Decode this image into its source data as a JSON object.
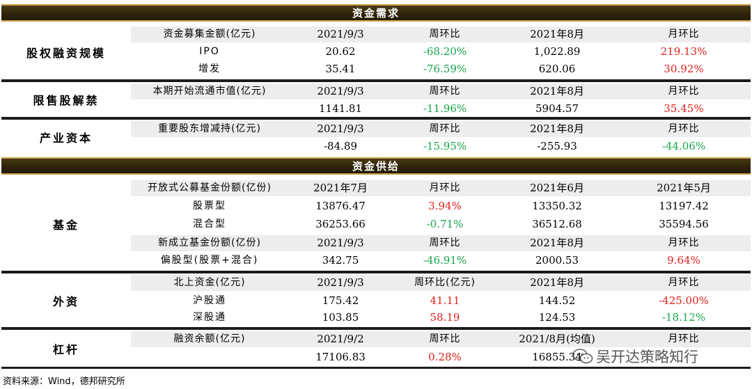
{
  "demand": {
    "title": "资金需求",
    "equity": {
      "label": "股权融资规模",
      "rows": [
        [
          "资金募集金额(亿元)",
          "2021/9/3",
          "周环比",
          "2021年8月",
          "月环比"
        ],
        [
          "IPO",
          "20.62",
          "-68.20%",
          "1,022.89",
          "219.13%"
        ],
        [
          "增发",
          "35.41",
          "-76.59%",
          "620.06",
          "30.92%"
        ]
      ]
    },
    "restricted": {
      "label": "限售股解禁",
      "rows": [
        [
          "本期开始流通市值(亿元)",
          "2021/9/3",
          "周环比",
          "2021年8月",
          "月环比"
        ],
        [
          "",
          "1141.81",
          "-11.96%",
          "5904.57",
          "35.45%"
        ]
      ]
    },
    "industrial": {
      "label": "产业资本",
      "rows": [
        [
          "重要股东增减持(亿元)",
          "2021/9/3",
          "周环比",
          "2021年8月",
          "月环比"
        ],
        [
          "",
          "-84.89",
          "-15.95%",
          "-255.93",
          "-44.06%"
        ]
      ]
    }
  },
  "supply": {
    "title": "资金供给",
    "funds": {
      "label": "基金",
      "rows": [
        [
          "开放式公募基金份额(亿份)",
          "2021年7月",
          "月环比",
          "2021年6月",
          "2021年5月"
        ],
        [
          "股票型",
          "13876.47",
          "3.94%",
          "13350.32",
          "13197.42"
        ],
        [
          "混合型",
          "36253.66",
          "-0.71%",
          "36512.68",
          "35594.56"
        ],
        [
          "新成立基金份额(亿份)",
          "2021/9/3",
          "周环比",
          "2021年8月",
          "月环比"
        ],
        [
          "偏股型(股票+混合)",
          "342.75",
          "-46.91%",
          "2000.53",
          "9.64%"
        ]
      ]
    },
    "foreign": {
      "label": "外资",
      "rows": [
        [
          "北上资金(亿元)",
          "2021/9/3",
          "周环比(亿元)",
          "2021年8月",
          "月环比"
        ],
        [
          "沪股通",
          "175.42",
          "41.11",
          "144.52",
          "-425.00%"
        ],
        [
          "深股通",
          "103.85",
          "58.19",
          "124.53",
          "-18.12%"
        ]
      ]
    },
    "leverage": {
      "label": "杠杆",
      "rows": [
        [
          "融资余额(亿元)",
          "2021/9/2",
          "周环比",
          "2021/8月(均值)",
          "月环比"
        ],
        [
          "",
          "17106.83",
          "0.28%",
          "16855.34",
          ""
        ]
      ]
    }
  },
  "source": "资料来源：Wind，德邦研究所",
  "watermark": "吴开达策略知行",
  "colors": {
    "band_gold": "#c9a24a",
    "band_dark": "#2f2409",
    "up": "#e0201c",
    "down": "#16a34a",
    "header_row": "#ededed"
  }
}
